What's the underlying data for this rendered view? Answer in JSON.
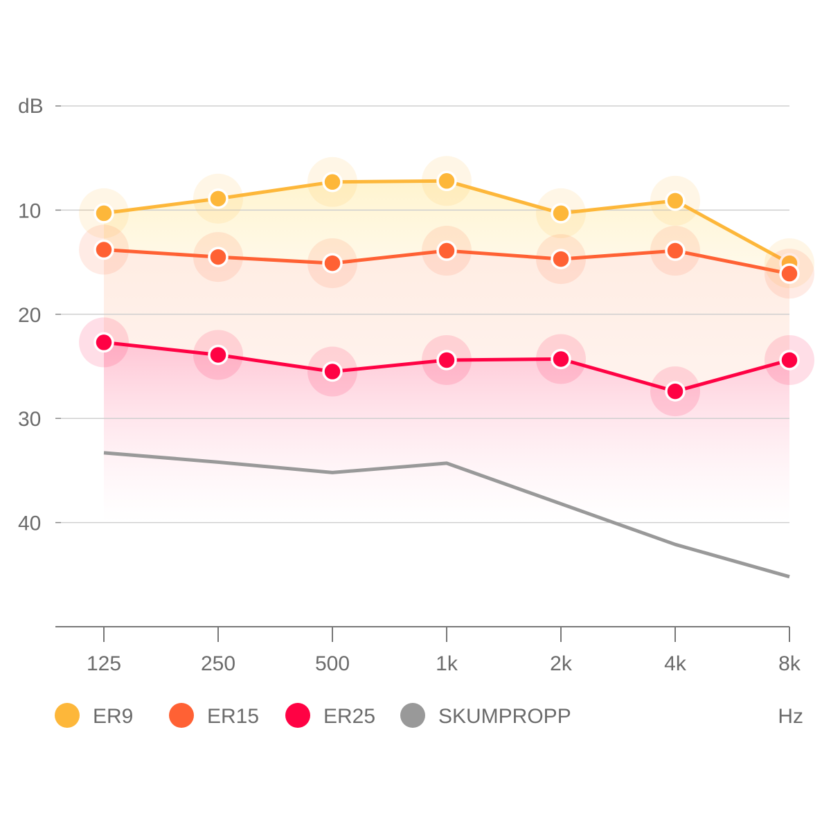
{
  "chart_data": {
    "type": "line",
    "ylabel": "dB",
    "xlabel": "Hz",
    "categories": [
      "125",
      "250",
      "500",
      "1k",
      "2k",
      "4k",
      "8k"
    ],
    "y_ticks": [
      "",
      "10",
      "20",
      "30",
      "40",
      ""
    ],
    "ylim": [
      0,
      50
    ],
    "y_inverted": true,
    "grid": true,
    "legend_position": "bottom",
    "series": [
      {
        "name": "ER9",
        "color": "#fdb73a",
        "markers": true,
        "values": [
          10.3,
          8.9,
          7.3,
          7.2,
          10.3,
          9.1,
          15.1
        ]
      },
      {
        "name": "ER15",
        "color": "#ff6134",
        "markers": true,
        "values": [
          13.8,
          14.5,
          15.1,
          13.9,
          14.7,
          13.9,
          16.1
        ]
      },
      {
        "name": "ER25",
        "color": "#ff0244",
        "markers": true,
        "values": [
          22.7,
          23.9,
          25.5,
          24.4,
          24.3,
          27.4,
          24.4
        ]
      },
      {
        "name": "SKUMPROPP",
        "color": "#999999",
        "markers": false,
        "values": [
          33.3,
          34.2,
          35.2,
          34.3,
          38.2,
          42.1,
          45.2
        ]
      }
    ]
  }
}
